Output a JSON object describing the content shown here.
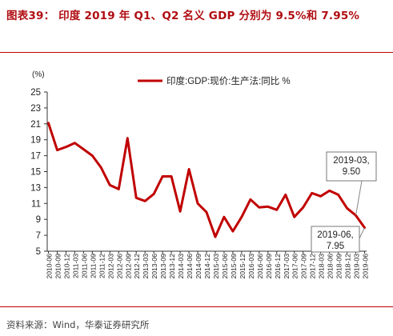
{
  "figure_title": "图表39：  印度 2019 年 Q1、Q2 名义 GDP 分别为 9.5%和 7.95%",
  "source_text": "资料来源：Wind，华泰证券研究所",
  "colors": {
    "accent": "#b00d12",
    "line": "#c00000",
    "text": "#222222"
  },
  "chart_data": {
    "type": "line",
    "title": "",
    "xlabel": "",
    "ylabel": "(%)",
    "ylim": [
      5,
      25
    ],
    "yticks": [
      5,
      7,
      9,
      11,
      13,
      15,
      17,
      19,
      21,
      23,
      25
    ],
    "grid": false,
    "legend_position": "top-right",
    "x": [
      "2010-06",
      "2010-09",
      "2010-12",
      "2011-03",
      "2011-06",
      "2011-09",
      "2011-12",
      "2012-03",
      "2012-06",
      "2012-09",
      "2012-12",
      "2013-03",
      "2013-06",
      "2013-09",
      "2013-12",
      "2014-03",
      "2014-06",
      "2014-09",
      "2014-12",
      "2015-03",
      "2015-06",
      "2015-09",
      "2015-12",
      "2016-03",
      "2016-06",
      "2016-09",
      "2016-12",
      "2017-03",
      "2017-06",
      "2017-09",
      "2017-12",
      "2018-03",
      "2018-06",
      "2018-09",
      "2018-12",
      "2019-03",
      "2019-06"
    ],
    "series": [
      {
        "name": "印度:GDP:现价:生产法:同比 %",
        "color": "#c00000",
        "values": [
          21.1,
          17.7,
          18.1,
          18.6,
          17.8,
          17.0,
          15.5,
          13.3,
          12.8,
          19.2,
          11.7,
          11.3,
          12.2,
          14.4,
          14.4,
          10.0,
          15.3,
          11.0,
          9.9,
          6.8,
          9.3,
          7.5,
          9.3,
          11.5,
          10.5,
          10.6,
          10.2,
          12.1,
          9.3,
          10.5,
          12.3,
          11.9,
          12.6,
          12.1,
          10.4,
          9.5,
          7.95
        ]
      }
    ],
    "annotations": [
      {
        "x": "2019-03",
        "lines": [
          "2019-03,",
          "9.50"
        ]
      },
      {
        "x": "2019-06",
        "lines": [
          "2019-06,",
          "7.95"
        ]
      }
    ]
  }
}
